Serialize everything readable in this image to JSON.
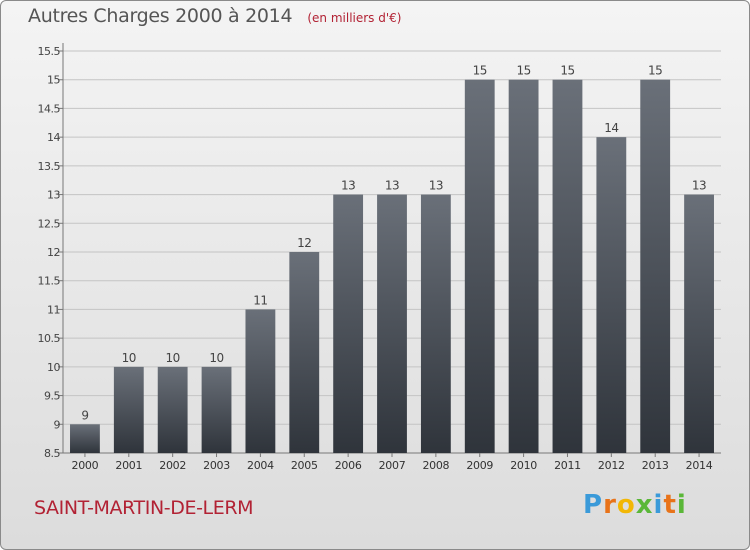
{
  "chart_data": {
    "type": "bar",
    "title": "Autres Charges 2000 à 2014",
    "unit_label": "(en milliers d'€)",
    "categories": [
      "2000",
      "2001",
      "2002",
      "2003",
      "2004",
      "2005",
      "2006",
      "2007",
      "2008",
      "2009",
      "2010",
      "2011",
      "2012",
      "2013",
      "2014"
    ],
    "values": [
      9,
      10,
      10,
      10,
      11,
      12,
      13,
      13,
      13,
      15,
      15,
      15,
      14,
      15,
      13
    ],
    "value_labels": [
      "9",
      "10",
      "10",
      "10",
      "11",
      "12",
      "13",
      "13",
      "13",
      "15",
      "15",
      "15",
      "14",
      "15",
      "13"
    ],
    "yticks": [
      "8.5",
      "9",
      "9.5",
      "10",
      "10.5",
      "11",
      "11.5",
      "12",
      "12.5",
      "13",
      "13.5",
      "14",
      "14.5",
      "15",
      "15.5"
    ],
    "ylim": [
      8.5,
      15.5
    ],
    "grid": true,
    "bar_color": "#4a5058"
  },
  "footer": {
    "commune": "SAINT-MARTIN-DE-LERM",
    "logo_text": "Proxiti",
    "logo_colors": [
      "#3a9ad9",
      "#e8731a",
      "#f2b705",
      "#5ab738",
      "#3a9ad9",
      "#e8731a",
      "#5ab738"
    ]
  }
}
